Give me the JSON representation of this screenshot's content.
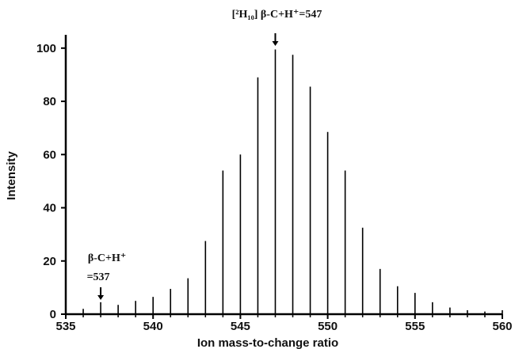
{
  "chart_data": {
    "type": "bar",
    "xlabel": "Ion mass-to-change ratio",
    "ylabel": "Intensity",
    "xlim": [
      535,
      560
    ],
    "ylim": [
      0,
      105
    ],
    "xticks": [
      535,
      540,
      545,
      550,
      555,
      560
    ],
    "yticks": [
      0,
      20,
      40,
      60,
      80,
      100
    ],
    "grid": false,
    "x": [
      536,
      537,
      538,
      539,
      540,
      541,
      542,
      543,
      544,
      545,
      546,
      547,
      548,
      549,
      550,
      551,
      552,
      553,
      554,
      555,
      556,
      557,
      558,
      559,
      560
    ],
    "values": [
      2,
      4.5,
      3.5,
      5,
      6.5,
      9.5,
      13.5,
      27.5,
      54,
      60,
      89,
      99.5,
      97.5,
      85.5,
      68.5,
      54,
      32.5,
      17,
      10.5,
      8,
      4.5,
      2.5,
      1.5,
      1,
      1.5
    ],
    "annotations": [
      {
        "x": 547,
        "lines": [
          "[²H₁₀] β-C+H⁺=547"
        ]
      },
      {
        "x": 537,
        "lines": [
          "β-C+H⁺",
          "=537"
        ]
      }
    ]
  }
}
